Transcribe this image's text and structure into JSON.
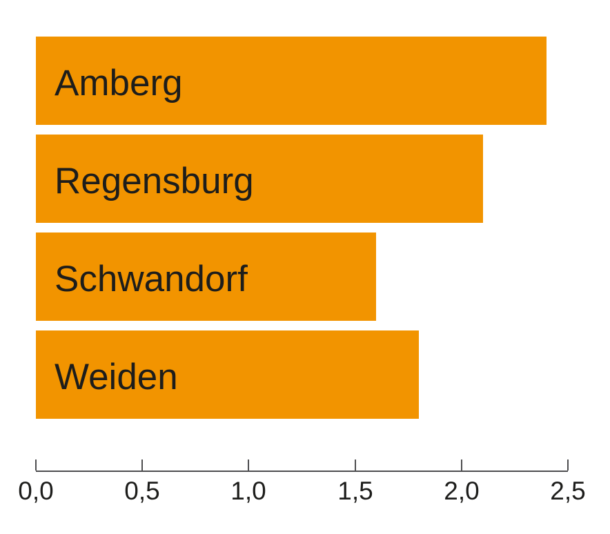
{
  "chart_data": {
    "type": "bar",
    "orientation": "horizontal",
    "title": "",
    "xlabel": "",
    "ylabel": "",
    "categories": [
      "Amberg",
      "Regensburg",
      "Schwandorf",
      "Weiden"
    ],
    "values": [
      2.4,
      2.1,
      1.6,
      1.8
    ],
    "xlim": [
      0,
      2.5
    ],
    "x_ticks": [
      "0,0",
      "0,5",
      "1,0",
      "1,5",
      "2,0",
      "2,5"
    ],
    "x_tick_values": [
      0,
      0.5,
      1.0,
      1.5,
      2.0,
      2.5
    ],
    "grid": false,
    "legend": "none",
    "bar_color": "#F29400",
    "label_color": "#1D1D1B",
    "axis_color": "#4D4D4F",
    "tick_label_color": "#1D1D1B",
    "bar_labels_inside": true,
    "decimal_style": "comma"
  }
}
